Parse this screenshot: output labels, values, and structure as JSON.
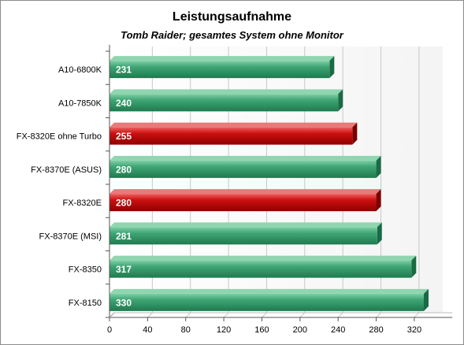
{
  "chart_data": {
    "type": "bar",
    "orientation": "horizontal",
    "title": "Leistungsaufnahme",
    "subtitle": "Tomb Raider; gesamtes System ohne  Monitor",
    "xlabel": "",
    "ylabel": "",
    "xlim": [
      0,
      350
    ],
    "ticks": [
      0,
      40,
      80,
      120,
      160,
      200,
      240,
      280,
      320
    ],
    "grid": true,
    "legend": "none",
    "categories": [
      "A10-6800K",
      "A10-7850K",
      "FX-8320E ohne Turbo",
      "FX-8370E (ASUS)",
      "FX-8320E",
      "FX-8370E (MSI)",
      "FX-8350",
      "FX-8150"
    ],
    "values": [
      231,
      240,
      255,
      280,
      280,
      281,
      317,
      330
    ],
    "colors": [
      "#3d9e6e",
      "#3d9e6e",
      "#cc1010",
      "#3d9e6e",
      "#cc1010",
      "#3d9e6e",
      "#3d9e6e",
      "#3d9e6e"
    ],
    "highlight_color": "#cc1010",
    "default_color": "#3d9e6e"
  }
}
